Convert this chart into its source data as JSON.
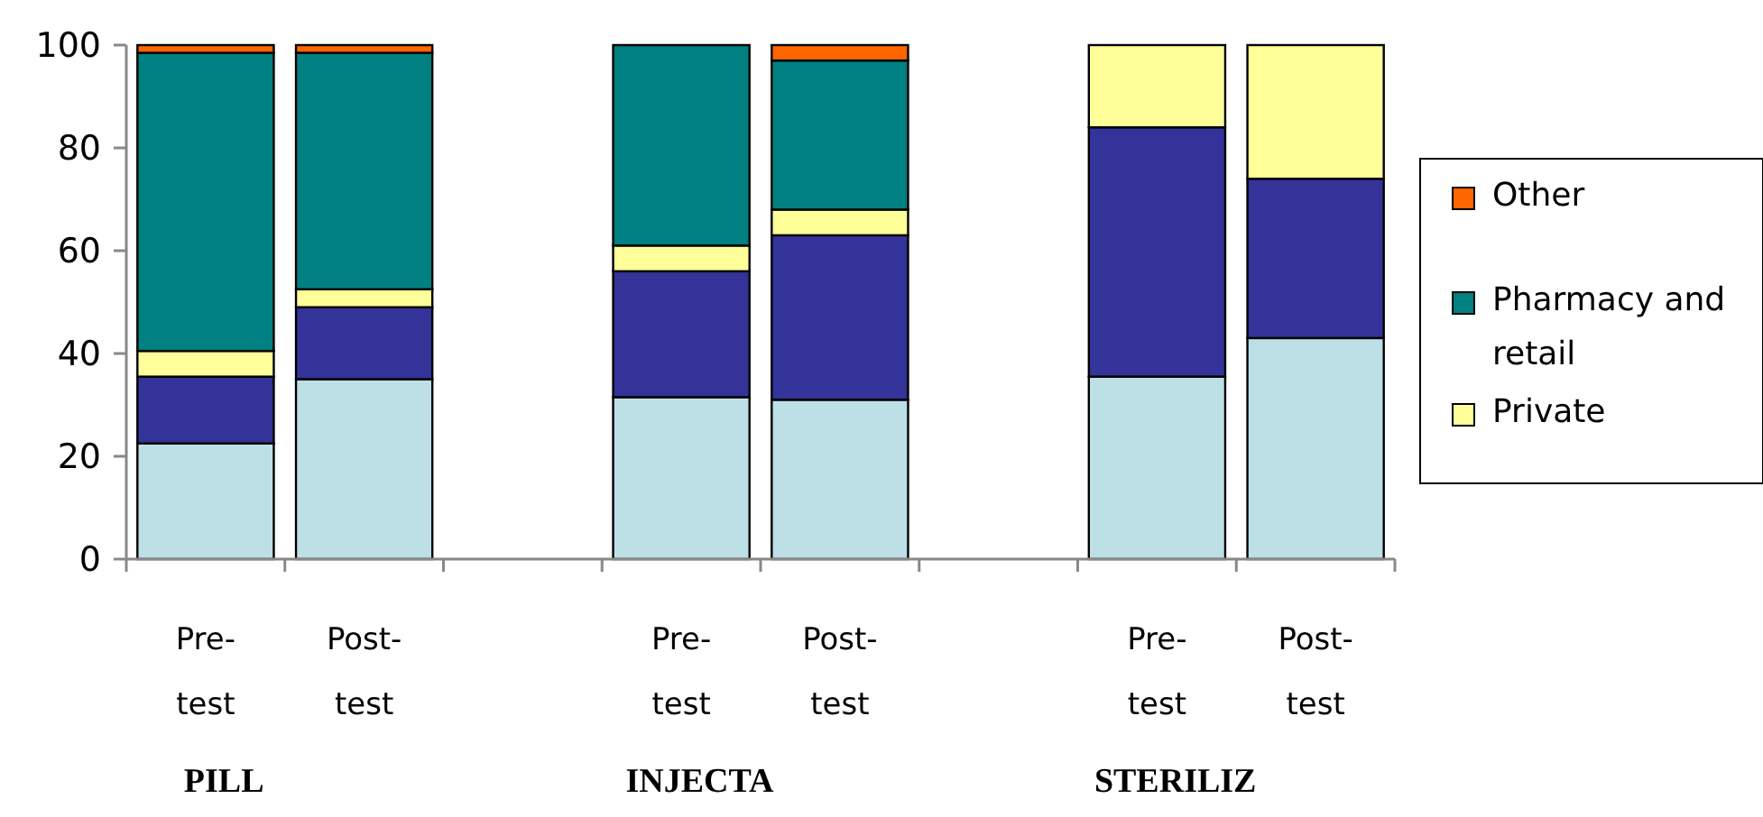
{
  "chart_data": {
    "type": "bar",
    "stacked": true,
    "categories": [
      "Pre-test",
      "Post-test",
      null,
      "Pre-test",
      "Post-test",
      null,
      "Pre-test",
      "Post-test"
    ],
    "series": [
      {
        "color": "#bde0e6",
        "values": [
          22.5,
          35,
          null,
          31.5,
          31,
          null,
          35.5,
          43
        ]
      },
      {
        "color": "#333399",
        "values": [
          13,
          14,
          null,
          24.5,
          32,
          null,
          48.5,
          31
        ]
      },
      {
        "name": "Private",
        "color": "#ffff99",
        "values": [
          5,
          3.5,
          null,
          5,
          5,
          null,
          16,
          26
        ]
      },
      {
        "name": "Pharmacy and retail",
        "color": "#008080",
        "values": [
          58,
          46,
          null,
          39,
          29,
          null,
          0,
          0
        ]
      },
      {
        "name": "Other",
        "color": "#ff6600",
        "values": [
          1.5,
          1.5,
          null,
          0,
          3,
          null,
          0,
          0
        ]
      }
    ],
    "ylim": [
      0,
      100
    ],
    "yticks": [
      0,
      20,
      40,
      60,
      80,
      100
    ],
    "annotations": [
      "PILL",
      "INJECTA",
      "STERILIZ"
    ],
    "legend": "right"
  }
}
